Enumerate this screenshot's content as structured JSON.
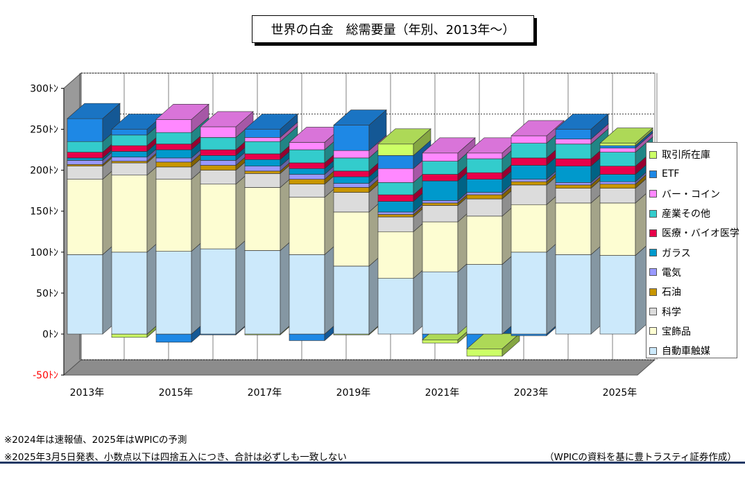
{
  "title": "世界の白金　総需要量（年別、2013年～）",
  "notes": {
    "line1": "※2024年は速報値、2025年はWPICの予測",
    "line2": "※2025年3月5日発表、小数点以下は四捨五入につき、合計は必ずしも一致しない",
    "source": "（WPICの資料を基に豊トラスティ証券作成）"
  },
  "chart_data": {
    "type": "bar",
    "stacked": true,
    "three_d": true,
    "ylim": [
      -50,
      300
    ],
    "yticks": [
      {
        "value": 300,
        "label": "300ﾄﾝ"
      },
      {
        "value": 250,
        "label": "250ﾄﾝ"
      },
      {
        "value": 200,
        "label": "200ﾄﾝ"
      },
      {
        "value": 150,
        "label": "150ﾄﾝ"
      },
      {
        "value": 100,
        "label": "100ﾄﾝ"
      },
      {
        "value": 50,
        "label": "50ﾄﾝ"
      },
      {
        "value": 0,
        "label": "0ﾄﾝ"
      },
      {
        "value": -50,
        "label": "-50ﾄﾝ"
      }
    ],
    "negative_tick_color": "#ff0000",
    "grid": true,
    "legend_position": "right",
    "years": [
      "2013",
      "2014",
      "2015",
      "2016",
      "2017",
      "2018",
      "2019",
      "2020",
      "2021",
      "2022",
      "2023",
      "2024",
      "2025"
    ],
    "x_tick_labels": [
      "2013年",
      "",
      "2015年",
      "",
      "2017年",
      "",
      "2019年",
      "",
      "2021年",
      "",
      "2023年",
      "",
      "2025年"
    ],
    "series": [
      {
        "name": "自動車触媒",
        "color": "#cce9fb",
        "values": [
          97,
          100,
          101,
          104,
          102,
          97,
          83,
          68,
          76,
          85,
          100,
          97,
          96
        ]
      },
      {
        "name": "宝飾品",
        "color": "#fdfdd2",
        "values": [
          92,
          94,
          88,
          79,
          77,
          70,
          66,
          57,
          61,
          59,
          58,
          63,
          64
        ]
      },
      {
        "name": "科学",
        "color": "#dcdcdc",
        "values": [
          16,
          15,
          15,
          17,
          17,
          16,
          24,
          18,
          20,
          21,
          24,
          18,
          18
        ]
      },
      {
        "name": "石油",
        "color": "#c89600",
        "values": [
          2,
          2,
          6,
          6,
          3,
          6,
          6,
          3,
          3,
          5,
          4,
          4,
          5
        ]
      },
      {
        "name": "電気",
        "color": "#9999ff",
        "values": [
          5,
          5,
          5,
          6,
          6,
          6,
          5,
          3,
          3,
          3,
          3,
          3,
          3
        ]
      },
      {
        "name": "ガラス",
        "color": "#0099cc",
        "values": [
          3,
          7,
          10,
          6,
          8,
          7,
          8,
          13,
          24,
          16,
          17,
          20,
          9
        ]
      },
      {
        "name": "医療・バイオ医学",
        "color": "#e8004a",
        "values": [
          7,
          7,
          7,
          7,
          7,
          7,
          7,
          8,
          8,
          8,
          9,
          9,
          10
        ]
      },
      {
        "name": "産業その他",
        "color": "#33cccc",
        "values": [
          13,
          13,
          14,
          15,
          15,
          16,
          16,
          15,
          16,
          17,
          18,
          18,
          17
        ]
      },
      {
        "name": "バー・コイン",
        "color": "#ff88ff",
        "values": [
          0,
          0,
          16,
          13,
          5,
          9,
          9,
          17,
          10,
          7,
          9,
          6,
          5
        ]
      },
      {
        "name": "ETF",
        "color": "#1e88e5",
        "values": [
          28,
          7,
          -10,
          -1,
          10,
          -8,
          31,
          16,
          -7,
          -18,
          -2,
          12,
          3
        ]
      },
      {
        "name": "取引所在庫",
        "color": "#ccff66",
        "values": [
          0,
          -4,
          0,
          0,
          -1,
          0,
          -1,
          14,
          -4,
          -9,
          0,
          0,
          3
        ]
      }
    ]
  }
}
